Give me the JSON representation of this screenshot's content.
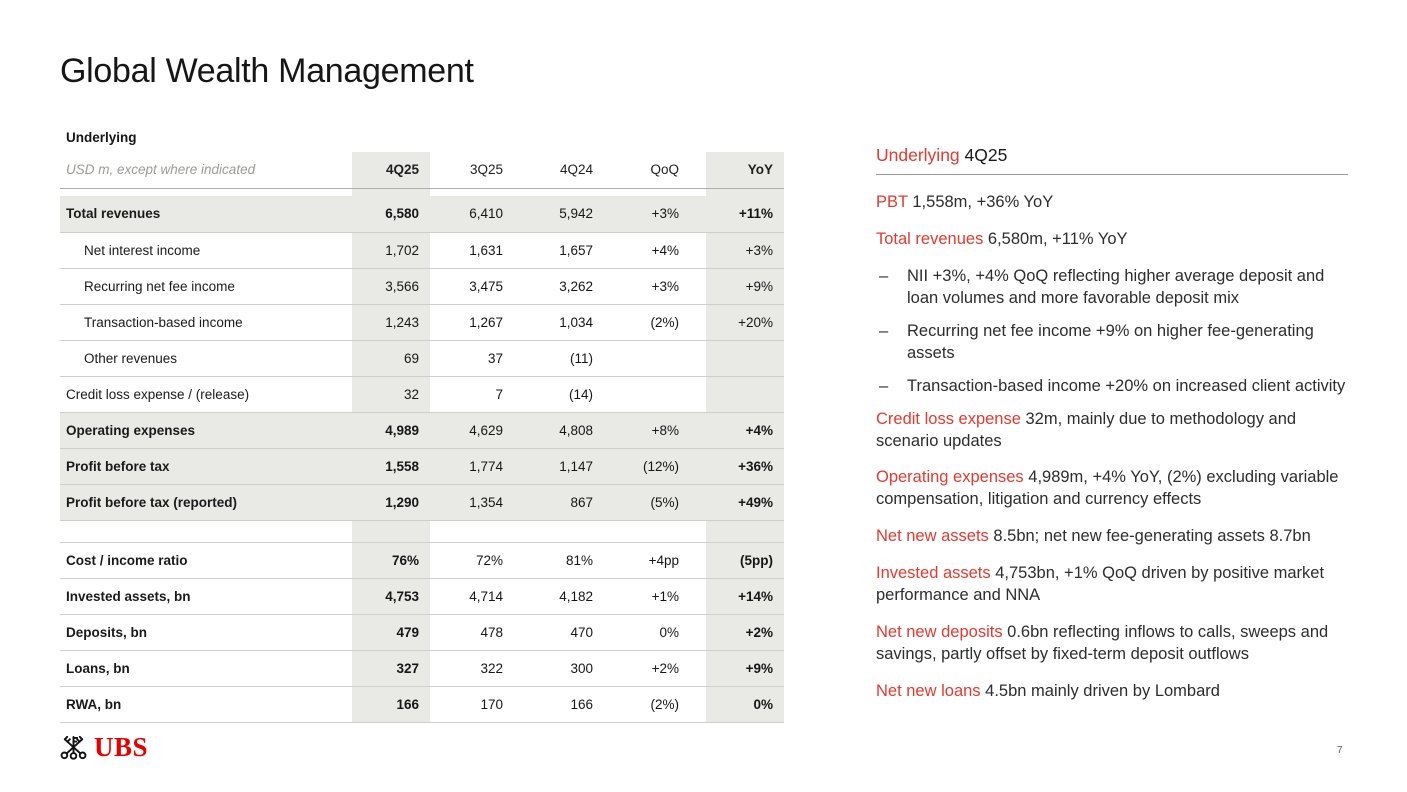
{
  "slide": {
    "title": "Global Wealth Management",
    "page_number": "7",
    "logo_text": "UBS"
  },
  "table": {
    "section_label": "Underlying",
    "unit_note": "USD m, except where indicated",
    "columns": [
      "4Q25",
      "3Q25",
      "4Q24",
      "QoQ",
      "YoY"
    ],
    "rows": [
      {
        "label": "Total revenues",
        "style": "band",
        "values": [
          "6,580",
          "6,410",
          "5,942",
          "+3%",
          "+11%"
        ]
      },
      {
        "label": "Net interest income",
        "style": "sub",
        "values": [
          "1,702",
          "1,631",
          "1,657",
          "+4%",
          "+3%"
        ]
      },
      {
        "label": "Recurring net fee income",
        "style": "sub",
        "values": [
          "3,566",
          "3,475",
          "3,262",
          "+3%",
          "+9%"
        ]
      },
      {
        "label": "Transaction-based income",
        "style": "sub",
        "values": [
          "1,243",
          "1,267",
          "1,034",
          "(2%)",
          "+20%"
        ]
      },
      {
        "label": "Other revenues",
        "style": "sub",
        "values": [
          "69",
          "37",
          "(11)",
          "",
          ""
        ]
      },
      {
        "label": "Credit loss expense / (release)",
        "style": "plain",
        "values": [
          "32",
          "7",
          "(14)",
          "",
          ""
        ]
      },
      {
        "label": "Operating expenses",
        "style": "band",
        "values": [
          "4,989",
          "4,629",
          "4,808",
          "+8%",
          "+4%"
        ]
      },
      {
        "label": "Profit before tax",
        "style": "band",
        "values": [
          "1,558",
          "1,774",
          "1,147",
          "(12%)",
          "+36%"
        ]
      },
      {
        "label": "Profit before tax (reported)",
        "style": "band",
        "values": [
          "1,290",
          "1,354",
          "867",
          "(5%)",
          "+49%"
        ]
      },
      {
        "label": "",
        "style": "spacer",
        "values": [
          "",
          "",
          "",
          "",
          ""
        ]
      },
      {
        "label": "Cost / income ratio",
        "style": "bold",
        "values": [
          "76%",
          "72%",
          "81%",
          "+4pp",
          "(5pp)"
        ]
      },
      {
        "label": "Invested assets, bn",
        "style": "bold",
        "values": [
          "4,753",
          "4,714",
          "4,182",
          "+1%",
          "+14%"
        ]
      },
      {
        "label": "Deposits, bn",
        "style": "bold",
        "values": [
          "479",
          "478",
          "470",
          "0%",
          "+2%"
        ]
      },
      {
        "label": "Loans, bn",
        "style": "bold",
        "values": [
          "327",
          "322",
          "300",
          "+2%",
          "+9%"
        ]
      },
      {
        "label": "RWA, bn",
        "style": "bold",
        "values": [
          "166",
          "170",
          "166",
          "(2%)",
          "0%"
        ]
      }
    ]
  },
  "panel": {
    "heading_keyword": "Underlying",
    "heading_rest": " 4Q25",
    "bullet_char": "–",
    "items": [
      {
        "type": "para",
        "keyword": "PBT",
        "text": " 1,558m, +36% YoY"
      },
      {
        "type": "para",
        "keyword": "Total revenues",
        "text": " 6,580m, +11% YoY"
      },
      {
        "type": "bullet",
        "text": "NII +3%, +4% QoQ reflecting higher average deposit and loan volumes and more favorable deposit mix"
      },
      {
        "type": "bullet",
        "text": "Recurring net fee income +9% on higher fee-generating assets"
      },
      {
        "type": "bullet",
        "text": "Transaction-based income +20% on increased client activity"
      },
      {
        "type": "para",
        "keyword": "Credit loss expense",
        "text": " 32m, mainly due to methodology and scenario updates"
      },
      {
        "type": "para",
        "keyword": "Operating expenses",
        "text": " 4,989m, +4% YoY, (2%) excluding variable compensation, litigation and currency effects"
      },
      {
        "type": "para",
        "keyword": "Net new assets",
        "text": " 8.5bn; net new fee-generating assets 8.7bn"
      },
      {
        "type": "para",
        "keyword": "Invested assets",
        "text": " 4,753bn, +1% QoQ driven by positive market performance and NNA"
      },
      {
        "type": "para",
        "keyword": "Net new deposits",
        "text": " 0.6bn reflecting inflows to calls, sweeps and savings, partly offset by fixed-term deposit outflows"
      },
      {
        "type": "para",
        "keyword": "Net new loans",
        "text": " 4.5bn mainly driven by Lombard"
      }
    ]
  },
  "colors": {
    "keyword_red": "#e23a30",
    "logo_red": "#e60000",
    "row_band": "#e9e9e6",
    "title_text": "#161616",
    "body_text": "#2d2d2d"
  }
}
